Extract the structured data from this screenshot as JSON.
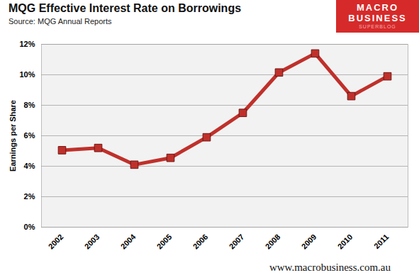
{
  "chart_data": {
    "type": "line",
    "title": "MQG Effective Interest Rate on Borrowings",
    "subtitle": "Source: MQG Annual Reports",
    "y_label": "Earnings per Share",
    "categories": [
      "2002",
      "2003",
      "2004",
      "2005",
      "2006",
      "2007",
      "2008",
      "2009",
      "2010",
      "2011"
    ],
    "values": [
      5.05,
      5.2,
      4.1,
      4.55,
      5.9,
      7.5,
      10.15,
      11.4,
      8.6,
      9.9
    ],
    "color": "#c0302b",
    "marker": "square",
    "ylim": [
      0,
      12
    ],
    "yticks": [
      {
        "value": 0,
        "label": "0%"
      },
      {
        "value": 2,
        "label": "2%"
      },
      {
        "value": 4,
        "label": "4%"
      },
      {
        "value": 6,
        "label": "6%"
      },
      {
        "value": 8,
        "label": "8%"
      },
      {
        "value": 10,
        "label": "10%"
      },
      {
        "value": 12,
        "label": "12%"
      }
    ],
    "grid": true,
    "logo": [
      "MACRO",
      "BUSINESS",
      "SUPERBLOG"
    ],
    "caption": "www.macrobusiness.com.au"
  }
}
